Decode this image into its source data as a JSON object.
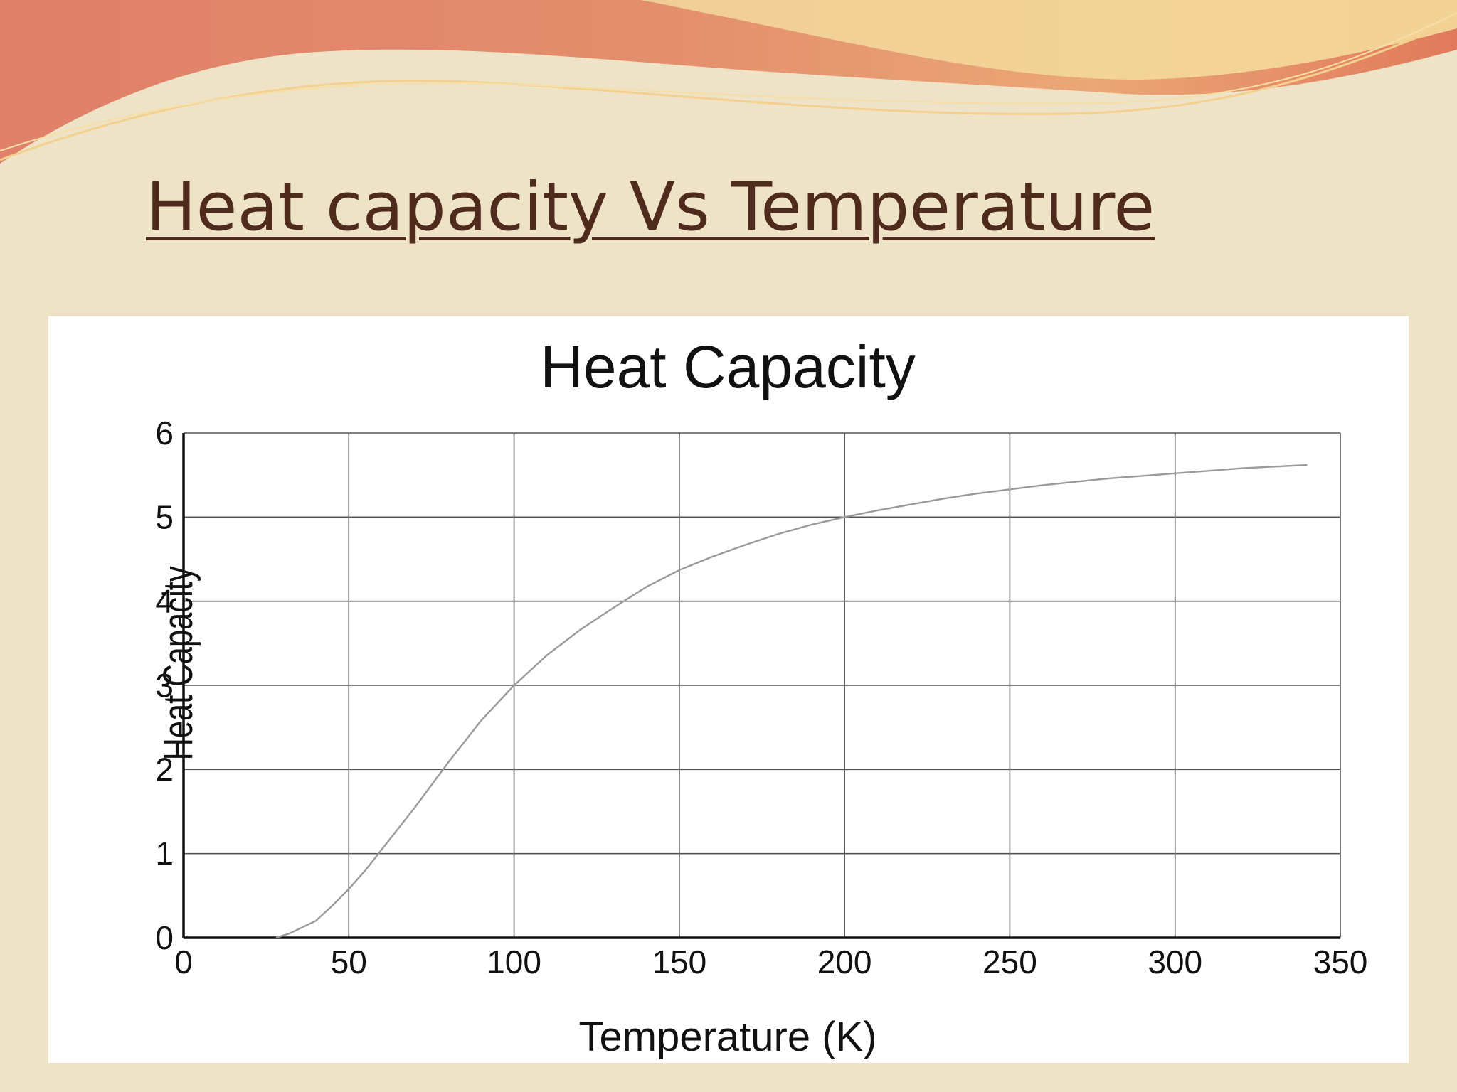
{
  "slide": {
    "title": "Heat capacity Vs Temperature",
    "colors": {
      "background": "#eee3c6",
      "title": "#4e2b1d",
      "wave_red": "#e0806a",
      "wave_orange": "#e8a56a",
      "wave_gold": "#f0cf8c"
    }
  },
  "chart_data": {
    "type": "line",
    "title": "Heat Capacity",
    "xlabel": "Temperature (K)",
    "ylabel": "Heat Capacity",
    "xlim": [
      0,
      350
    ],
    "ylim": [
      0,
      6
    ],
    "x_ticks": [
      0,
      50,
      100,
      150,
      200,
      250,
      300,
      350
    ],
    "y_ticks": [
      0,
      1,
      2,
      3,
      4,
      5,
      6
    ],
    "grid": true,
    "line_color": "#9a9a9a",
    "series": [
      {
        "x": [
          28,
          32,
          40,
          45,
          50,
          55,
          60,
          70,
          80,
          90,
          100,
          110,
          120,
          130,
          140,
          150,
          160,
          170,
          180,
          190,
          200,
          210,
          220,
          230,
          240,
          250,
          260,
          270,
          280,
          290,
          300,
          310,
          320,
          330,
          340
        ],
        "values": [
          0,
          0.05,
          0.2,
          0.38,
          0.58,
          0.8,
          1.05,
          1.55,
          2.08,
          2.58,
          3.0,
          3.36,
          3.66,
          3.92,
          4.17,
          4.37,
          4.53,
          4.67,
          4.8,
          4.91,
          5.0,
          5.08,
          5.15,
          5.22,
          5.28,
          5.33,
          5.38,
          5.42,
          5.46,
          5.49,
          5.52,
          5.55,
          5.58,
          5.6,
          5.62
        ]
      }
    ]
  }
}
